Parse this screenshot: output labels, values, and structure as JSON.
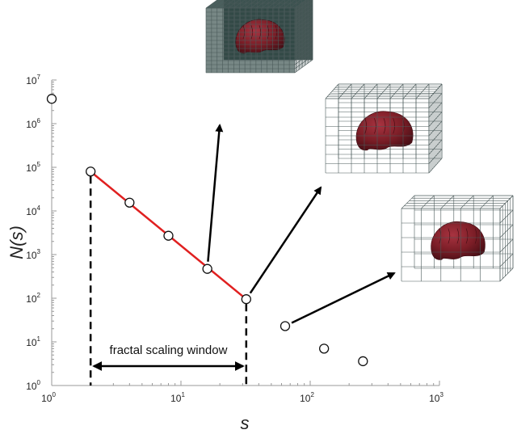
{
  "chart_data": {
    "type": "scatter",
    "title": "",
    "xlabel": "s",
    "ylabel": "N(s)",
    "xscale": "log",
    "yscale": "log",
    "xlim": [
      1,
      1000
    ],
    "ylim": [
      1,
      10000000
    ],
    "x_ticks": [
      {
        "base": "10",
        "exp": "0"
      },
      {
        "base": "10",
        "exp": "1"
      },
      {
        "base": "10",
        "exp": "2"
      },
      {
        "base": "10",
        "exp": "3"
      }
    ],
    "y_ticks": [
      {
        "base": "10",
        "exp": "0"
      },
      {
        "base": "10",
        "exp": "1"
      },
      {
        "base": "10",
        "exp": "2"
      },
      {
        "base": "10",
        "exp": "3"
      },
      {
        "base": "10",
        "exp": "4"
      },
      {
        "base": "10",
        "exp": "5"
      },
      {
        "base": "10",
        "exp": "6"
      },
      {
        "base": "10",
        "exp": "7"
      }
    ],
    "points": [
      {
        "x": 1,
        "y": 3700000
      },
      {
        "x": 2,
        "y": 80000
      },
      {
        "x": 4,
        "y": 15500
      },
      {
        "x": 8,
        "y": 2700
      },
      {
        "x": 16,
        "y": 470
      },
      {
        "x": 32,
        "y": 95
      },
      {
        "x": 64,
        "y": 23
      },
      {
        "x": 128,
        "y": 7
      },
      {
        "x": 256,
        "y": 3.6
      }
    ],
    "fit_line": {
      "x": [
        2,
        32
      ],
      "y": [
        80000,
        95
      ],
      "color": "#e02020"
    },
    "scaling_window": {
      "x_start": 2,
      "x_end": 32,
      "label": "fractal scaling window"
    },
    "insets": [
      {
        "name": "fine-grid-brain",
        "grid_cells": 16,
        "darkness": 0.85,
        "arrow_from_x": 16,
        "arrow_from_y": 470
      },
      {
        "name": "medium-grid-brain",
        "grid_cells": 8,
        "darkness": 0.0,
        "arrow_from_x": 32,
        "arrow_from_y": 95
      },
      {
        "name": "coarse-grid-brain",
        "grid_cells": 5,
        "darkness": 0.0,
        "arrow_from_x": 64,
        "arrow_from_y": 23
      }
    ],
    "grid": false,
    "colors": {
      "axis": "#9a9a9a",
      "marker": "#111111",
      "fit": "#e02020",
      "brain": "#7a1d26"
    }
  }
}
